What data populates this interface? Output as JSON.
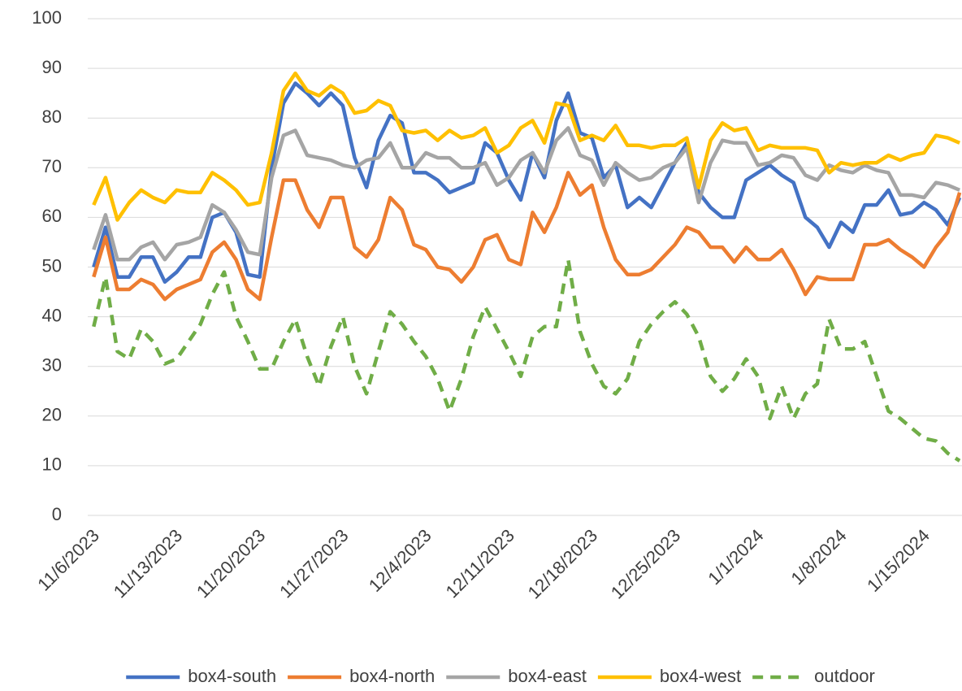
{
  "chart_data": {
    "type": "line",
    "categories": [
      "11/6/2023",
      null,
      null,
      null,
      null,
      null,
      null,
      "11/13/2023",
      null,
      null,
      null,
      null,
      null,
      null,
      "11/20/2023",
      null,
      null,
      null,
      null,
      null,
      null,
      "11/27/2023",
      null,
      null,
      null,
      null,
      null,
      null,
      "12/4/2023",
      null,
      null,
      null,
      null,
      null,
      null,
      "12/11/2023",
      null,
      null,
      null,
      null,
      null,
      null,
      "12/18/2023",
      null,
      null,
      null,
      null,
      null,
      null,
      "12/25/2023",
      null,
      null,
      null,
      null,
      null,
      null,
      "1/1/2024",
      null,
      null,
      null,
      null,
      null,
      null,
      "1/8/2024",
      null,
      null,
      null,
      null,
      null,
      null,
      "1/15/2024",
      null,
      null,
      null
    ],
    "ylim": [
      0,
      100
    ],
    "yticks": [
      0,
      10,
      20,
      30,
      40,
      50,
      60,
      70,
      80,
      90,
      100
    ],
    "grid": true,
    "legend": "bottom",
    "series": [
      {
        "name": "box4-south",
        "color": "#4472c4",
        "dash": false,
        "values": [
          50,
          58,
          48,
          48,
          52,
          52,
          47,
          49,
          52,
          52,
          60,
          61,
          57,
          48.5,
          48,
          70,
          83,
          87,
          85,
          82.5,
          85,
          82.5,
          72,
          66,
          75.5,
          80.5,
          79,
          69,
          69,
          67.5,
          65,
          66,
          67,
          75,
          73,
          67.5,
          63.5,
          73,
          68,
          79.5,
          85,
          77,
          76,
          68,
          70.5,
          62,
          64,
          62,
          66.5,
          71,
          75,
          65,
          62,
          60,
          60,
          67.5,
          69,
          70.5,
          68.5,
          67,
          60,
          58,
          54,
          59,
          57,
          62.5,
          62.5,
          65.5,
          60.5,
          61,
          63,
          61.5,
          58.5,
          64
        ]
      },
      {
        "name": "box4-north",
        "color": "#ed7d31",
        "dash": false,
        "values": [
          48,
          56,
          45.5,
          45.5,
          47.5,
          46.5,
          43.5,
          45.5,
          46.5,
          47.5,
          53,
          55,
          51.5,
          45.5,
          43.5,
          56,
          67.5,
          67.5,
          61.5,
          58,
          64,
          64,
          54,
          52,
          55.5,
          64,
          61.5,
          54.5,
          53.5,
          50,
          49.5,
          47,
          50,
          55.5,
          56.5,
          51.5,
          50.5,
          61,
          57,
          62,
          69,
          64.5,
          66.5,
          58,
          51.5,
          48.5,
          48.5,
          49.5,
          52,
          54.5,
          58,
          57,
          54,
          54,
          51,
          54,
          51.5,
          51.5,
          53.5,
          49.5,
          44.5,
          48,
          47.5,
          47.5,
          47.5,
          54.5,
          54.5,
          55.5,
          53.5,
          52,
          50,
          54,
          57,
          65
        ]
      },
      {
        "name": "box4-east",
        "color": "#a5a5a5",
        "dash": false,
        "values": [
          53.5,
          60.5,
          51.5,
          51.5,
          54,
          55,
          51.5,
          54.5,
          55,
          56,
          62.5,
          61,
          57.5,
          53,
          52.5,
          68,
          76.5,
          77.5,
          72.5,
          72,
          71.5,
          70.5,
          70,
          71.5,
          72,
          75,
          70,
          70,
          73,
          72,
          72,
          70,
          70,
          71,
          66.5,
          68,
          71.5,
          73,
          69,
          75.5,
          78,
          72.5,
          71.5,
          66.5,
          71,
          69,
          67.5,
          68,
          70,
          71,
          74,
          63,
          71,
          75.5,
          75,
          75,
          70.5,
          71,
          72.5,
          72,
          68.5,
          67.5,
          70.5,
          69.5,
          69,
          70.5,
          69.5,
          69,
          64.5,
          64.5,
          64,
          67,
          66.5,
          65.5
        ]
      },
      {
        "name": "box4-west",
        "color": "#ffc000",
        "dash": false,
        "values": [
          62.5,
          68,
          59.5,
          63,
          65.5,
          64,
          63,
          65.5,
          65,
          65,
          69,
          67.5,
          65.5,
          62.5,
          63,
          73,
          85.5,
          89,
          85.5,
          84.5,
          86.5,
          85,
          81,
          81.5,
          83.5,
          82.5,
          77.5,
          77,
          77.5,
          75.5,
          77.5,
          76,
          76.5,
          78,
          73,
          74.5,
          78,
          79.5,
          75,
          83,
          82.5,
          75.5,
          76.5,
          75.5,
          78.5,
          74.5,
          74.5,
          74,
          74.5,
          74.5,
          76,
          66,
          75.5,
          79,
          77.5,
          78,
          73.5,
          74.5,
          74,
          74,
          74,
          73.5,
          69,
          71,
          70.5,
          71,
          71,
          72.5,
          71.5,
          72.5,
          73,
          76.5,
          76,
          75
        ]
      },
      {
        "name": "outdoor",
        "color": "#70ad47",
        "dash": true,
        "values": [
          38,
          48,
          33,
          31.5,
          37.5,
          35,
          30.5,
          31.5,
          35,
          38.5,
          44.5,
          49,
          40,
          35,
          29.5,
          29.5,
          35,
          39.5,
          32,
          26,
          34,
          40,
          30,
          24.5,
          33,
          41,
          38.5,
          35,
          32,
          27.5,
          21,
          27.5,
          36,
          42,
          37.5,
          33,
          28,
          36,
          38,
          38,
          51.5,
          37,
          30.5,
          26,
          24.5,
          27.5,
          35,
          38.5,
          41,
          43,
          40.5,
          36,
          28,
          25,
          27.5,
          31.5,
          28,
          19.5,
          26,
          19.5,
          24.5,
          26.5,
          39.5,
          33.5,
          33.5,
          35,
          28,
          21,
          19.5,
          17.5,
          15.5,
          15,
          12.5,
          11
        ]
      }
    ]
  }
}
